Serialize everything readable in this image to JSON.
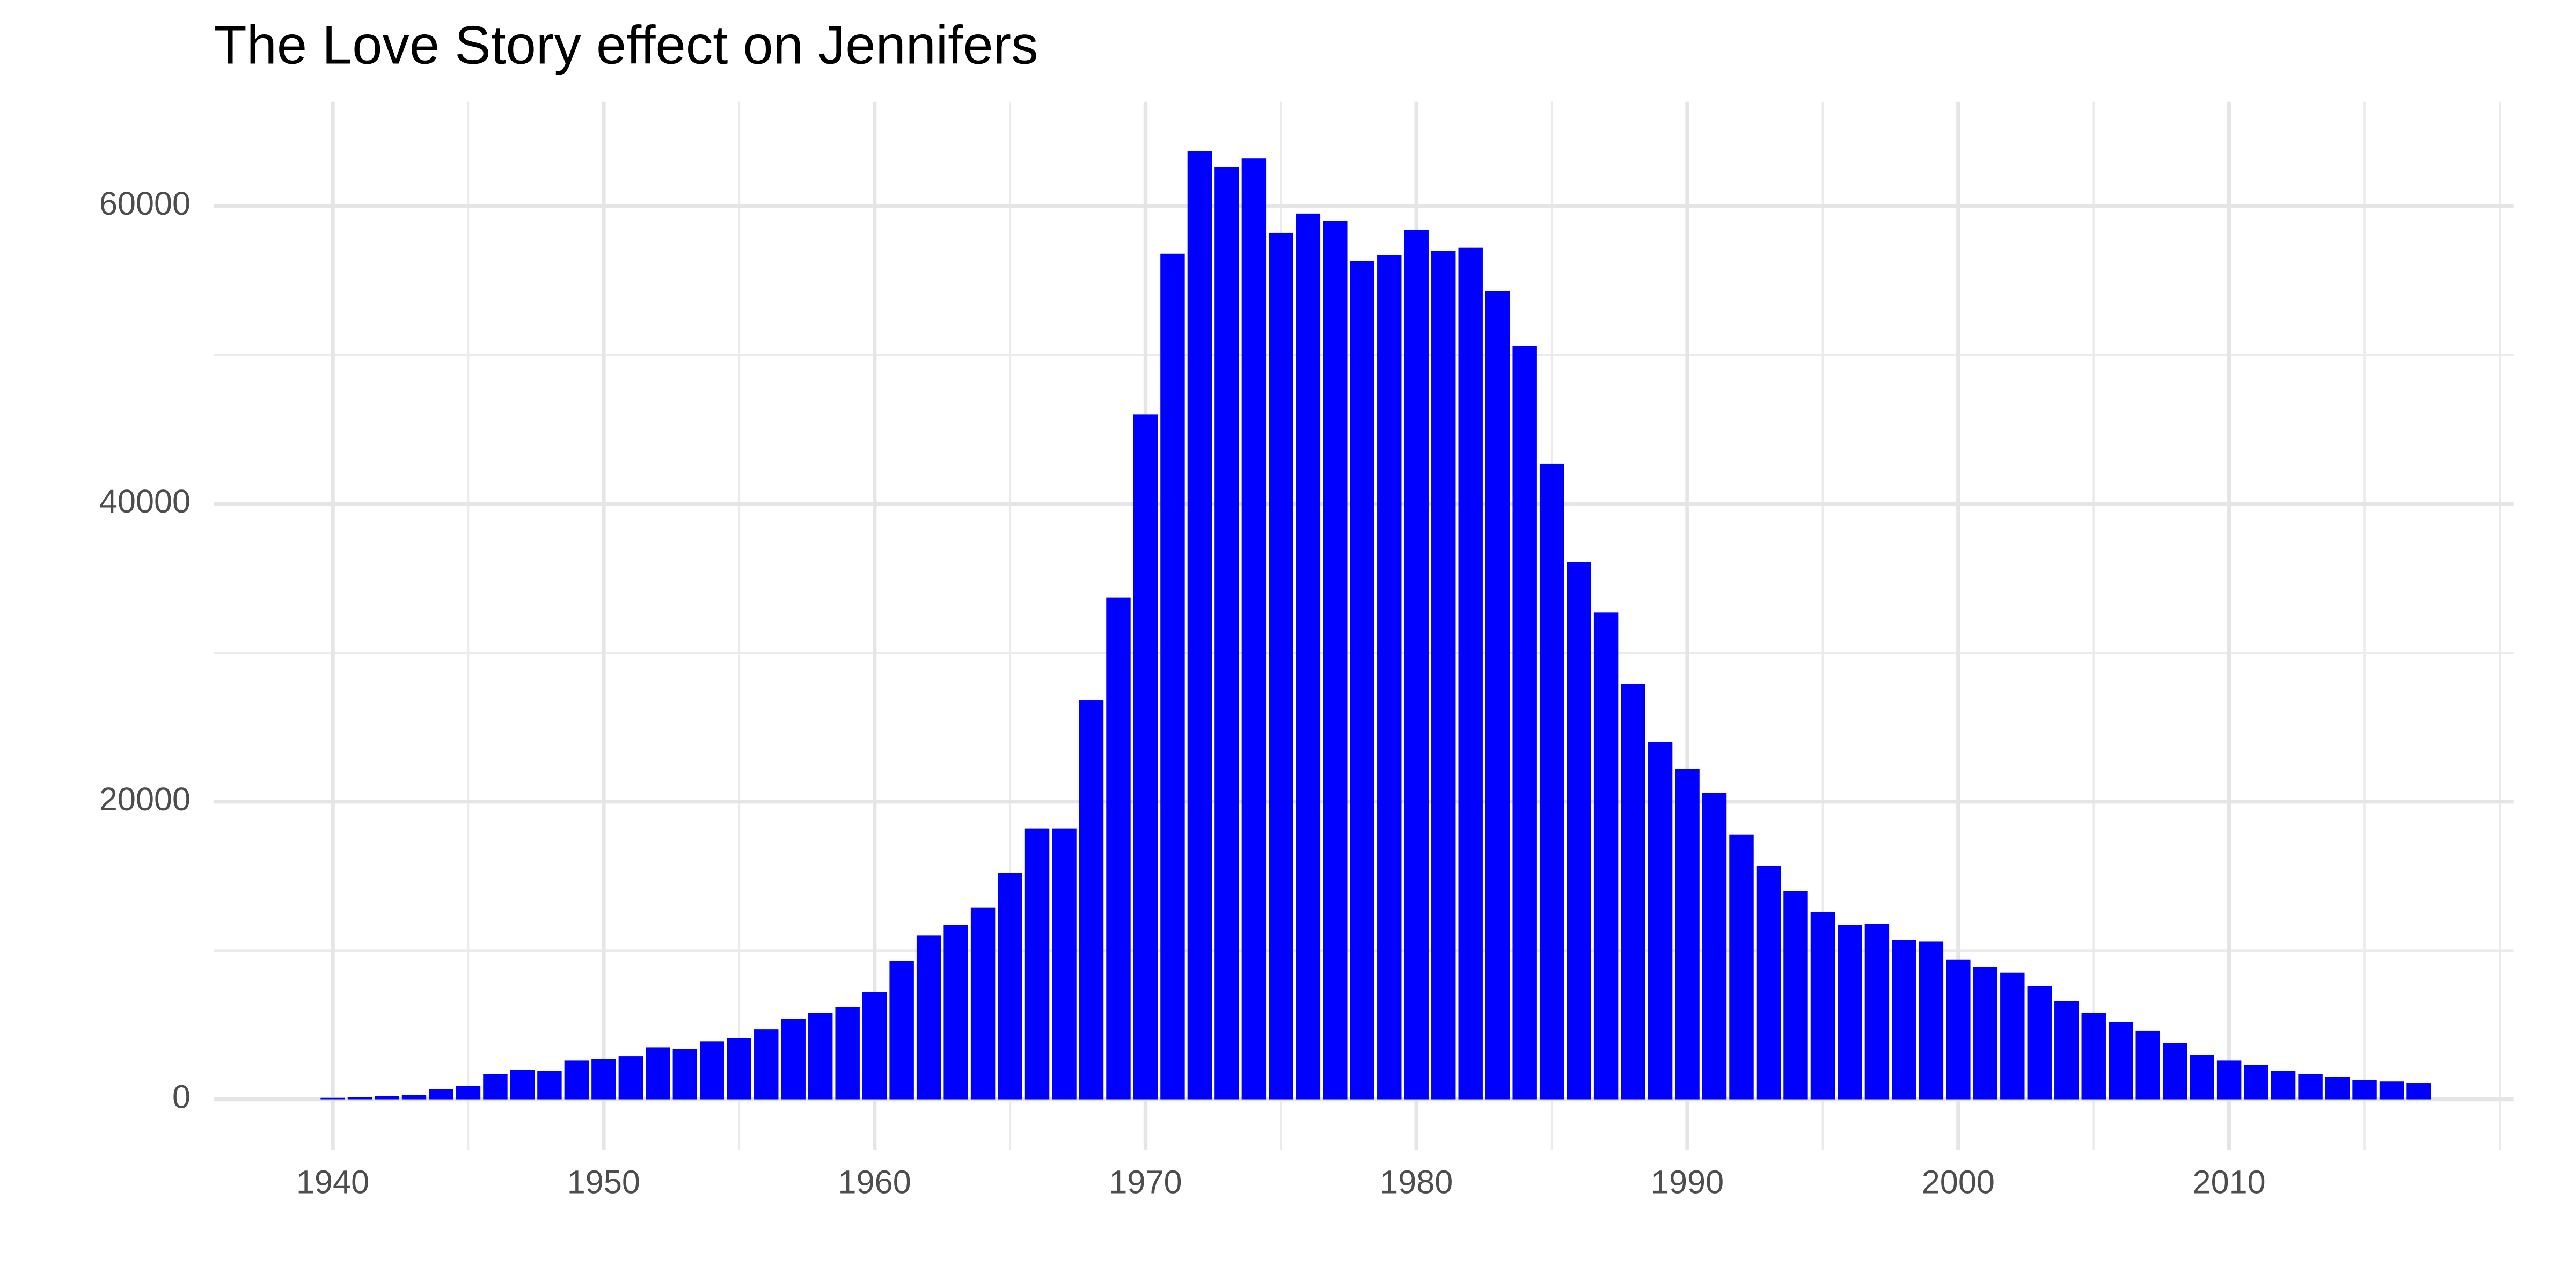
{
  "chart_data": {
    "type": "bar",
    "title": "The Love Story effect on Jennifers",
    "color": "#0000ff",
    "x": [
      1940,
      1941,
      1942,
      1943,
      1944,
      1945,
      1946,
      1947,
      1948,
      1949,
      1950,
      1951,
      1952,
      1953,
      1954,
      1955,
      1956,
      1957,
      1958,
      1959,
      1960,
      1961,
      1962,
      1963,
      1964,
      1965,
      1966,
      1967,
      1968,
      1969,
      1970,
      1971,
      1972,
      1973,
      1974,
      1975,
      1976,
      1977,
      1978,
      1979,
      1980,
      1981,
      1982,
      1983,
      1984,
      1985,
      1986,
      1987,
      1988,
      1989,
      1990,
      1991,
      1992,
      1993,
      1994,
      1995,
      1996,
      1997,
      1998,
      1999,
      2000,
      2001,
      2002,
      2003,
      2004,
      2005,
      2006,
      2007,
      2008,
      2009,
      2010,
      2011,
      2012,
      2013,
      2014,
      2015,
      2016,
      2017
    ],
    "values": [
      100,
      150,
      200,
      300,
      700,
      900,
      1700,
      2000,
      1900,
      2600,
      2700,
      2900,
      3500,
      3400,
      3900,
      4100,
      4700,
      5400,
      5800,
      6200,
      7200,
      9300,
      11000,
      11700,
      12900,
      15200,
      18200,
      18200,
      26800,
      33700,
      46000,
      56800,
      63700,
      62600,
      63200,
      58200,
      59500,
      59000,
      56300,
      56700,
      58400,
      57000,
      57200,
      54300,
      50600,
      42700,
      36100,
      32700,
      27900,
      24000,
      22200,
      20600,
      17800,
      15700,
      14000,
      12600,
      11700,
      11800,
      10700,
      10600,
      9400,
      8900,
      8500,
      7600,
      6600,
      5800,
      5200,
      4600,
      3800,
      3000,
      2600,
      2300,
      1900,
      1700,
      1500,
      1300,
      1200,
      1100
    ],
    "xlim": [
      1935.6,
      2020.5
    ],
    "xticks": [
      1940,
      1950,
      1960,
      1970,
      1980,
      1990,
      2000,
      2010
    ],
    "xminor_ticks": [
      1945,
      1955,
      1965,
      1975,
      1985,
      1995,
      2005,
      2015,
      2020
    ],
    "ylim": [
      -3400,
      67000
    ],
    "yticks": [
      0,
      20000,
      40000,
      60000
    ],
    "yminor_ticks": [
      10000,
      30000,
      50000
    ],
    "grid": true
  }
}
